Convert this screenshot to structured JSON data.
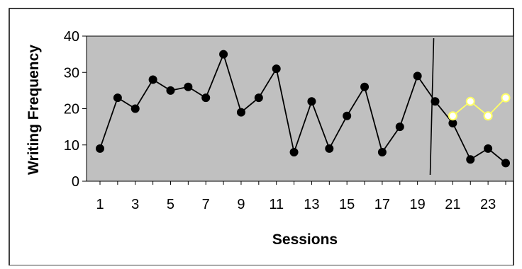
{
  "chart_data": {
    "type": "line",
    "title": "",
    "xlabel": "Sessions",
    "ylabel": "Writing Frequency",
    "x": [
      1,
      2,
      3,
      4,
      5,
      6,
      7,
      8,
      9,
      10,
      11,
      12,
      13,
      14,
      15,
      16,
      17,
      18,
      19,
      20,
      21,
      22,
      23,
      24
    ],
    "xlim": [
      1,
      24
    ],
    "ylim": [
      0,
      40
    ],
    "x_ticks": [
      "1",
      "3",
      "5",
      "7",
      "9",
      "11",
      "13",
      "15",
      "17",
      "19",
      "21",
      "23"
    ],
    "y_ticks": [
      "0",
      "10",
      "20",
      "30",
      "40"
    ],
    "grid": false,
    "legend": "none",
    "phase_line_after_session": 20,
    "series": [
      {
        "color": "#000000",
        "x": [
          1,
          2,
          3,
          4,
          5,
          6,
          7,
          8,
          9,
          10,
          11,
          12,
          13,
          14,
          15,
          16,
          17,
          18,
          19,
          20,
          21,
          22,
          23,
          24
        ],
        "values": [
          9,
          23,
          20,
          28,
          25,
          26,
          23,
          35,
          19,
          23,
          31,
          8,
          22,
          9,
          18,
          26,
          8,
          15,
          29,
          22,
          16,
          6,
          9,
          5
        ]
      },
      {
        "color": "#ffff66",
        "x": [
          21,
          22,
          23,
          24
        ],
        "values": [
          18,
          22,
          18,
          23
        ]
      }
    ],
    "plot_area_color": "#c0c0c0"
  }
}
